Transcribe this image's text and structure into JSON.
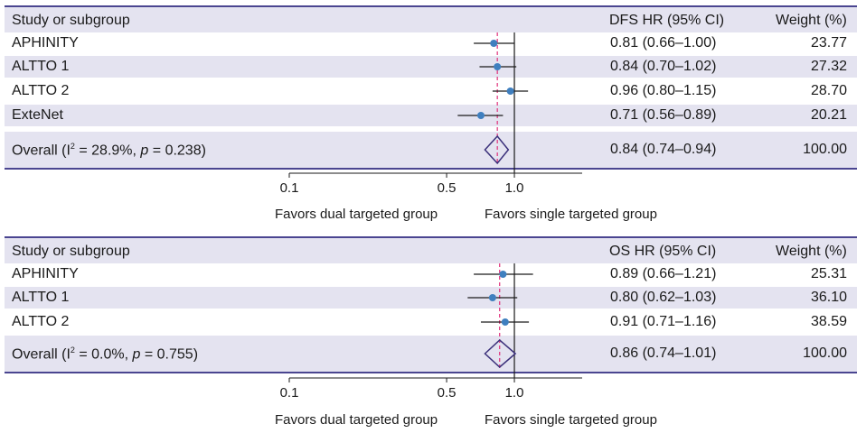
{
  "chart_data": [
    {
      "type": "forest",
      "columns": {
        "study": "Study or subgroup",
        "estimate": "DFS HR (95% CI)",
        "weight": "Weight (%)"
      },
      "rows": [
        {
          "label": "APHINITY",
          "hr": 0.81,
          "lo": 0.66,
          "hi": 1.0,
          "ci_text": "0.81 (0.66–1.00)",
          "weight": "23.77"
        },
        {
          "label": "ALTTO 1",
          "hr": 0.84,
          "lo": 0.7,
          "hi": 1.02,
          "ci_text": "0.84 (0.70–1.02)",
          "weight": "27.32"
        },
        {
          "label": "ALTTO 2",
          "hr": 0.96,
          "lo": 0.8,
          "hi": 1.15,
          "ci_text": "0.96 (0.80–1.15)",
          "weight": "28.70"
        },
        {
          "label": "ExteNet",
          "hr": 0.71,
          "lo": 0.56,
          "hi": 0.89,
          "ci_text": "0.71 (0.56–0.89)",
          "weight": "20.21"
        }
      ],
      "overall": {
        "label_prefix": "Overall (I",
        "label_sup": "2",
        "label_stat": " = 28.9%, ",
        "label_p": "p",
        "label_pval": " = 0.238)",
        "hr": 0.84,
        "lo": 0.74,
        "hi": 0.94,
        "ci_text": "0.84 (0.74–0.94)",
        "weight": "100.00"
      },
      "x_scale": "log",
      "xlim": [
        0.1,
        2.0
      ],
      "ticks": [
        "0.1",
        "0.5",
        "1.0"
      ],
      "tick_values": [
        0.1,
        0.5,
        1.0
      ],
      "favors_left": "Favors dual targeted group",
      "favors_right": "Favors single targeted group"
    },
    {
      "type": "forest",
      "columns": {
        "study": "Study or subgroup",
        "estimate": "OS HR (95% CI)",
        "weight": "Weight (%)"
      },
      "rows": [
        {
          "label": "APHINITY",
          "hr": 0.89,
          "lo": 0.66,
          "hi": 1.21,
          "ci_text": "0.89 (0.66–1.21)",
          "weight": "25.31"
        },
        {
          "label": "ALTTO 1",
          "hr": 0.8,
          "lo": 0.62,
          "hi": 1.03,
          "ci_text": "0.80 (0.62–1.03)",
          "weight": "36.10"
        },
        {
          "label": "ALTTO 2",
          "hr": 0.91,
          "lo": 0.71,
          "hi": 1.16,
          "ci_text": "0.91 (0.71–1.16)",
          "weight": "38.59"
        }
      ],
      "overall": {
        "label_prefix": "Overall (I",
        "label_sup": "2",
        "label_stat": " = 0.0%, ",
        "label_p": "p",
        "label_pval": " = 0.755)",
        "hr": 0.86,
        "lo": 0.74,
        "hi": 1.01,
        "ci_text": "0.86 (0.74–1.01)",
        "weight": "100.00"
      },
      "x_scale": "log",
      "xlim": [
        0.1,
        2.0
      ],
      "ticks": [
        "0.1",
        "0.5",
        "1.0"
      ],
      "tick_values": [
        0.1,
        0.5,
        1.0
      ],
      "favors_left": "Favors dual targeted group",
      "favors_right": "Favors single targeted group"
    }
  ],
  "colors": {
    "header_bg": "#e4e3f0",
    "rule": "#4a4590",
    "point": "#3f7fbf",
    "diamond": "#3a2f7a",
    "dashed": "#e0307a"
  }
}
